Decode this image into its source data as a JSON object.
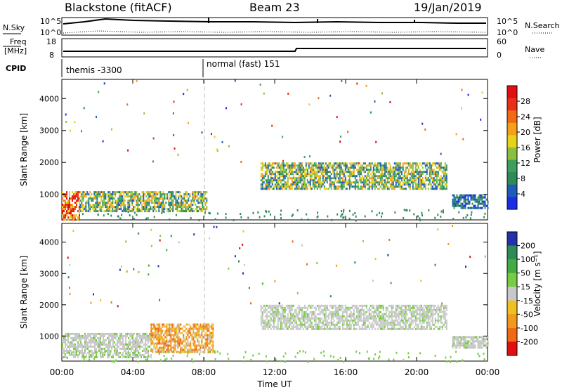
{
  "header": {
    "station": "Blackstone (fitACF)",
    "beam": "Beam 23",
    "date": "19/Jan/2019"
  },
  "sky_panel": {
    "left_label": "N.Sky",
    "right_label": "N.Search",
    "ticks": [
      "10^5",
      "10^0"
    ]
  },
  "freq_panel": {
    "left_label_line1": "Freq",
    "left_label_line2": "[MHz]",
    "left_ticks": [
      "18",
      "8"
    ],
    "right_label": "Nave",
    "right_ticks": [
      "60",
      "0"
    ]
  },
  "cpid": {
    "label": "CPID",
    "modes": [
      {
        "name": "themis -3300",
        "start_hour": 0
      },
      {
        "name": "normal (fast) 151",
        "start_hour": 8
      }
    ]
  },
  "colors": {
    "power_scale": [
      "#1a2ee6",
      "#1f5bb8",
      "#2e8a57",
      "#3f9e5b",
      "#8cbf3f",
      "#e6d21a",
      "#f5a019",
      "#f06a16",
      "#e83018",
      "#e01010"
    ],
    "velocity_scale": [
      "#2233aa",
      "#2e8a57",
      "#44aa44",
      "#77cc44",
      "#c8c8c8",
      "#f0c020",
      "#f09a20",
      "#f06a16",
      "#e01010"
    ]
  },
  "chart_data": [
    {
      "type": "heatmap",
      "name": "power",
      "ylabel": "Slant Range [km]",
      "yticks": [
        1000,
        2000,
        3000,
        4000
      ],
      "ylim": [
        200,
        4600
      ],
      "xlim": [
        0,
        24
      ],
      "colorbar_label": "Power [dB]",
      "colorbar_ticks": [
        "4",
        "8",
        "12",
        "16",
        "20",
        "24",
        "28"
      ],
      "bands": [
        {
          "from_hour": 0.0,
          "to_hour": 1.0,
          "range_low": 200,
          "range_high": 1100,
          "level": "strong"
        },
        {
          "from_hour": 1.0,
          "to_hour": 8.2,
          "range_low": 500,
          "range_high": 1100,
          "level": "medium"
        },
        {
          "from_hour": 11.2,
          "to_hour": 21.7,
          "range_low": 1200,
          "range_high": 2000,
          "level": "medium"
        },
        {
          "from_hour": 22.0,
          "to_hour": 24.0,
          "range_low": 600,
          "range_high": 1000,
          "level": "weak"
        }
      ]
    },
    {
      "type": "heatmap",
      "name": "velocity",
      "ylabel": "Slant Range [km]",
      "yticks": [
        1000,
        2000,
        3000,
        4000
      ],
      "ylim": [
        200,
        4600
      ],
      "xlim": [
        0,
        24
      ],
      "colorbar_label": "Velocity [m s⁻¹]",
      "colorbar_ticks": [
        "200",
        "100",
        "50",
        "15",
        "-15",
        "-50",
        "-100",
        "-200"
      ],
      "bands": [
        {
          "from_hour": 0.0,
          "to_hour": 5.0,
          "range_low": 300,
          "range_high": 1100,
          "level": "ground"
        },
        {
          "from_hour": 5.0,
          "to_hour": 8.5,
          "range_low": 500,
          "range_high": 1400,
          "level": "negative"
        },
        {
          "from_hour": 11.2,
          "to_hour": 21.7,
          "range_low": 1200,
          "range_high": 2000,
          "level": "ground"
        },
        {
          "from_hour": 22.0,
          "to_hour": 24.0,
          "range_low": 600,
          "range_high": 1000,
          "level": "ground"
        }
      ]
    }
  ],
  "x_axis": {
    "label": "Time UT",
    "ticks": [
      "00:00",
      "04:00",
      "08:00",
      "12:00",
      "16:00",
      "20:00",
      "00:00"
    ]
  }
}
